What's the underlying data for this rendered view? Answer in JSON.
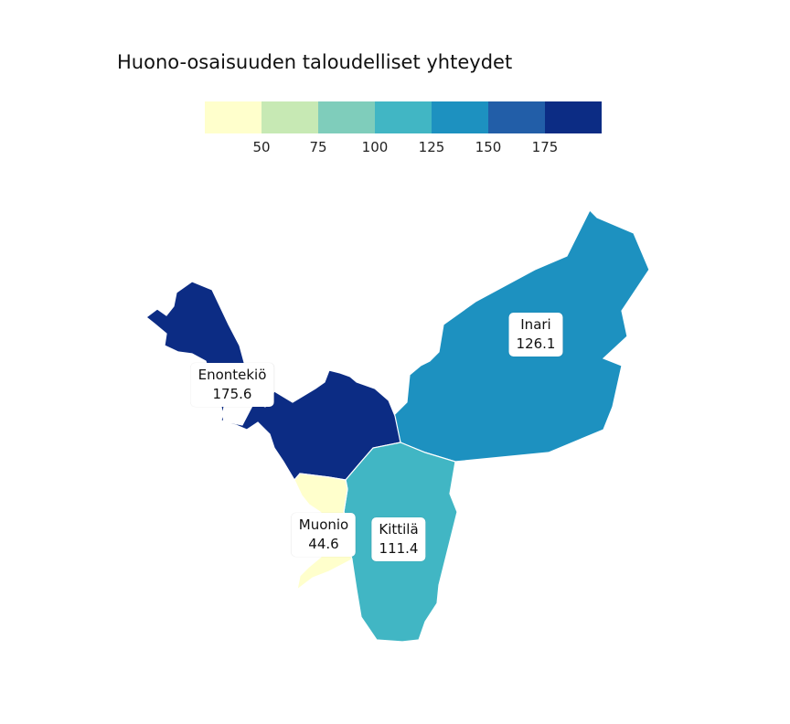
{
  "title": "Huono-osaisuuden taloudelliset yhteydet",
  "legend": {
    "colors": [
      "#ffffcc",
      "#c7e9b4",
      "#7fcdbb",
      "#41b6c4",
      "#1d91c0",
      "#225ea8",
      "#0c2c84"
    ],
    "ticks": [
      "50",
      "75",
      "100",
      "125",
      "150",
      "175"
    ]
  },
  "regions": [
    {
      "name": "Inari",
      "value": "126.1",
      "color": "#1d91c0"
    },
    {
      "name": "Enontekiö",
      "value": "175.6",
      "color": "#0c2c84"
    },
    {
      "name": "Kittilä",
      "value": "111.4",
      "color": "#41b6c4"
    },
    {
      "name": "Muonio",
      "value": "44.6",
      "color": "#ffffcc"
    }
  ]
}
